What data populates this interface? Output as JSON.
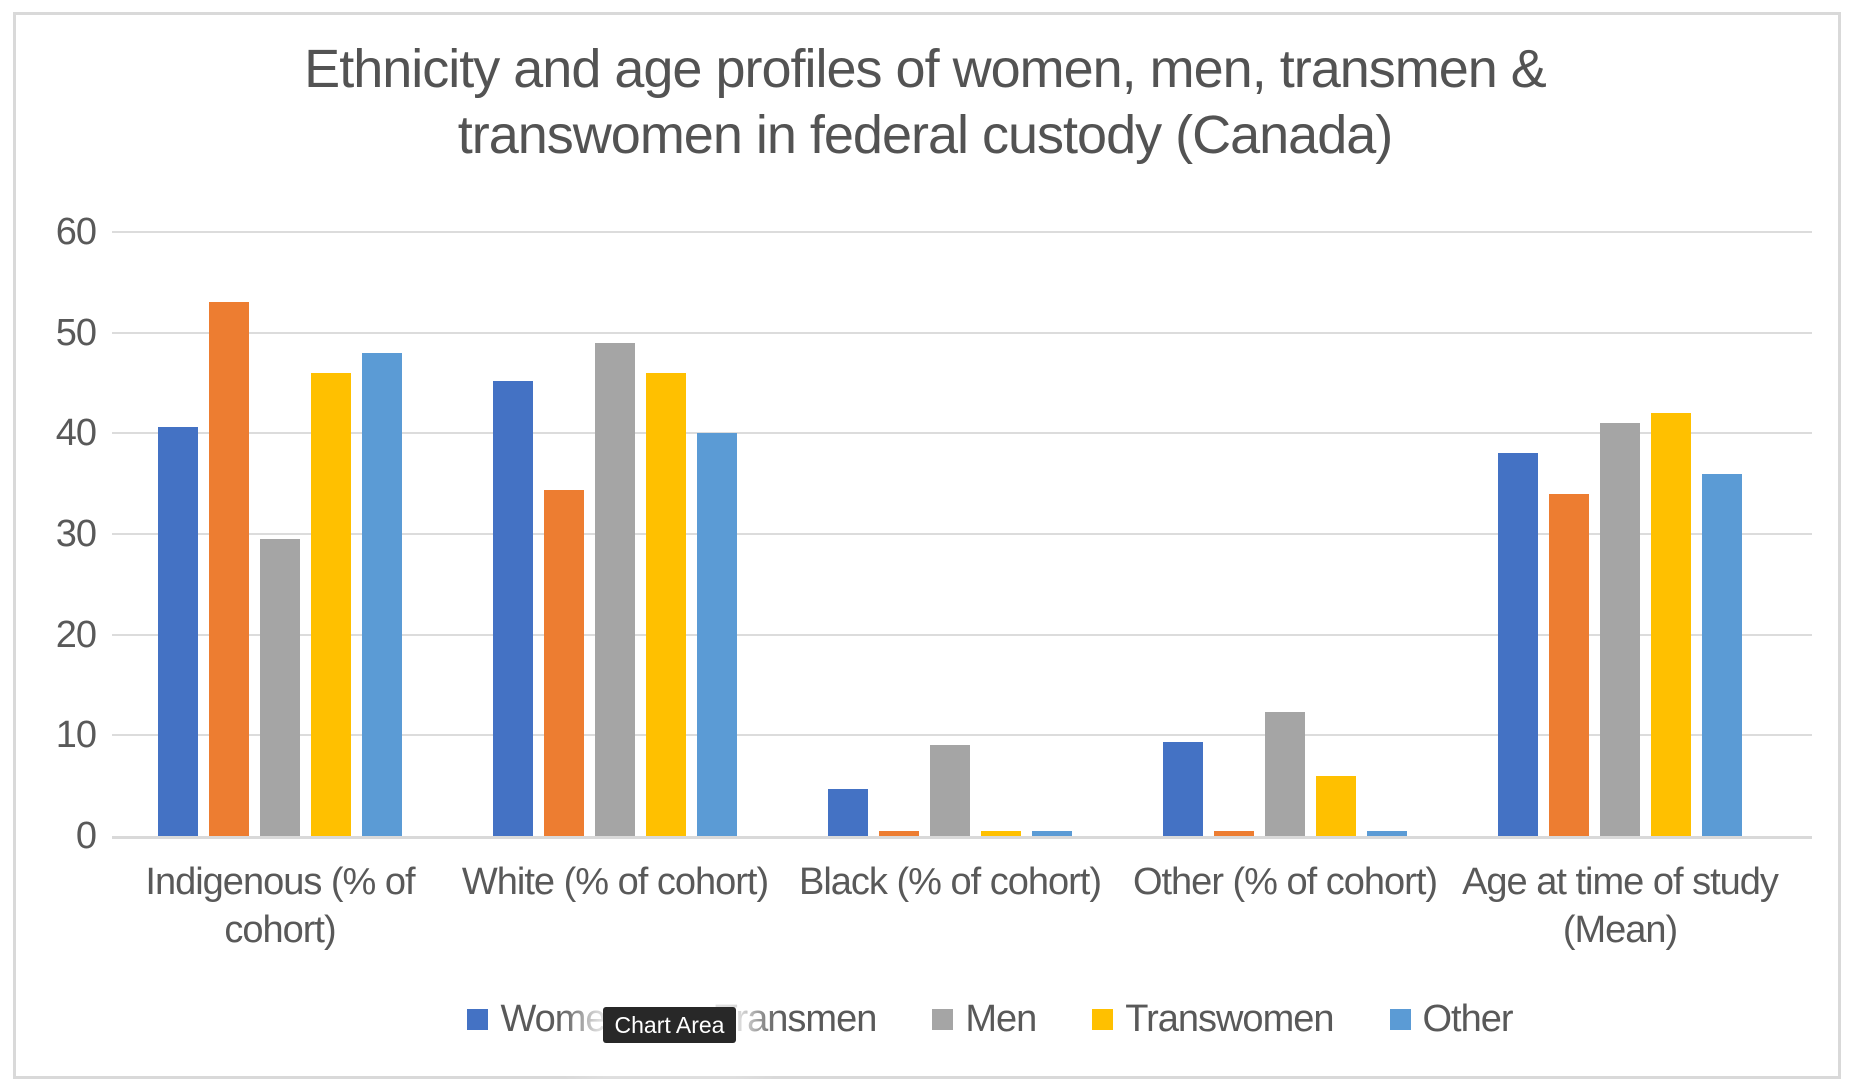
{
  "chart": {
    "title_line1": "Ethnicity and age profiles of women, men, transmen &",
    "title_line2": "transwomen in federal custody (Canada)",
    "tooltip_label": "Chart Area"
  },
  "chart_data": {
    "type": "bar",
    "title": "Ethnicity and age profiles of women, men, transmen & transwomen in federal custody (Canada)",
    "categories": [
      "Indigenous (% of cohort)",
      "White (% of cohort)",
      "Black (% of cohort)",
      "Other (% of cohort)",
      "Age at time of study (Mean)"
    ],
    "category_label_lines": [
      [
        "Indigenous (% of",
        "cohort)"
      ],
      [
        "White (% of cohort)"
      ],
      [
        "Black (% of cohort)"
      ],
      [
        "Other (% of cohort)"
      ],
      [
        "Age at time of study",
        "(Mean)"
      ]
    ],
    "series": [
      {
        "name": "Women",
        "color": "#4472C4",
        "values": [
          40.6,
          45.2,
          4.7,
          9.3,
          38
        ]
      },
      {
        "name": "Transmen",
        "color": "#ED7D31",
        "values": [
          53,
          34.4,
          0.5,
          0.5,
          34
        ]
      },
      {
        "name": "Men",
        "color": "#A5A5A5",
        "values": [
          29.5,
          49,
          9,
          12.3,
          41
        ]
      },
      {
        "name": "Transwomen",
        "color": "#FFC000",
        "values": [
          46,
          46,
          0.5,
          6,
          42
        ]
      },
      {
        "name": "Other",
        "color": "#5B9BD5",
        "values": [
          48,
          40,
          0.5,
          0.5,
          36
        ]
      }
    ],
    "xlabel": "",
    "ylabel": "",
    "ylim": [
      0,
      60
    ],
    "yticks": [
      0,
      10,
      20,
      30,
      40,
      50,
      60
    ],
    "grid": true,
    "legend_position": "bottom"
  },
  "colors": {
    "text": "#595959",
    "title_text": "#535353",
    "gridline": "#d9d9d9",
    "frame_border": "#d9d9d9",
    "tooltip_bg": "#282828",
    "tooltip_text": "#ffffff"
  }
}
